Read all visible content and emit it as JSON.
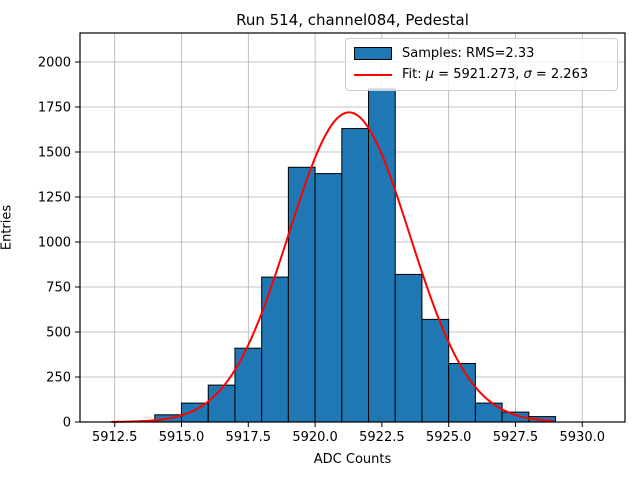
{
  "title": "Run 514, channel084, Pedestal",
  "axes": {
    "xlabel": "ADC Counts",
    "ylabel": "Entries"
  },
  "legend": {
    "samples_label": "Samples: RMS=2.33",
    "fit_parts": [
      "Fit: ",
      "μ",
      " = 5921.273, ",
      "σ",
      " = 2.263"
    ]
  },
  "chart_data": {
    "type": "bar",
    "subtype": "histogram",
    "title": "Run 514, channel084, Pedestal",
    "xlabel": "ADC Counts",
    "ylabel": "Entries",
    "bin_edges": [
      5914,
      5915,
      5916,
      5917,
      5918,
      5919,
      5920,
      5921,
      5922,
      5923,
      5924,
      5925,
      5926,
      5927,
      5928,
      5929
    ],
    "values": [
      40,
      105,
      205,
      410,
      805,
      1415,
      1380,
      1630,
      1850,
      820,
      570,
      325,
      105,
      55,
      30
    ],
    "series_label": "Samples: RMS=2.33",
    "rms": 2.33,
    "fit": {
      "label": "Fit: μ = 5921.273, σ = 2.263",
      "mu": 5921.273,
      "sigma": 2.263,
      "amplitude": 1720,
      "x_range": [
        5912.4,
        5928.9
      ],
      "color": "#ff0000"
    },
    "xlim": [
      5911.2,
      5931.6
    ],
    "ylim": [
      0,
      2161
    ],
    "xticks": [
      5912.5,
      5915.0,
      5917.5,
      5920.0,
      5922.5,
      5925.0,
      5927.5,
      5930.0
    ],
    "xtick_labels": [
      "5912.5",
      "5915.0",
      "5917.5",
      "5920.0",
      "5922.5",
      "5925.0",
      "5927.5",
      "5930.0"
    ],
    "yticks": [
      0,
      250,
      500,
      750,
      1000,
      1250,
      1500,
      1750,
      2000
    ],
    "ytick_labels": [
      "0",
      "250",
      "500",
      "750",
      "1000",
      "1250",
      "1500",
      "1750",
      "2000"
    ],
    "grid": true,
    "grid_color": "#b0b0b0",
    "bar_color": "#1f77b4",
    "bar_edge_color": "#000000",
    "legend_position": "upper right"
  }
}
